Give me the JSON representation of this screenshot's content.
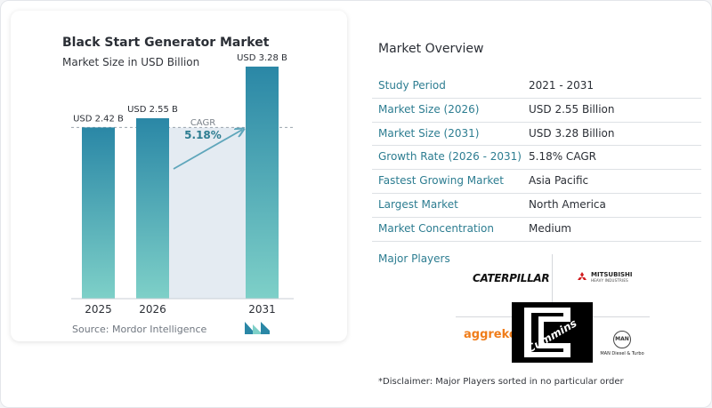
{
  "chart_data": {
    "type": "bar",
    "title": "Black Start Generator Market",
    "subtitle": "Market Size in USD Billion",
    "categories": [
      "2025",
      "2026",
      "2031"
    ],
    "values": [
      2.42,
      2.55,
      3.28
    ],
    "data_labels": [
      "USD 2.42 B",
      "USD 2.55 B",
      "USD 3.28 B"
    ],
    "xlabel": "",
    "ylabel": "",
    "cagr_label": "CAGR",
    "cagr_value": "5.18%",
    "grid": false,
    "colors": {
      "bar_top": "#2a87a6",
      "bar_bottom": "#7ed0c8",
      "shade": "#e4ebf2",
      "arrow": "#5fa6bb",
      "cagr": "#2d7d91"
    }
  },
  "source": "Source:  Mordor Intelligence",
  "overview": {
    "title": "Market Overview",
    "rows": [
      {
        "key": "Study Period",
        "value": "2021 - 2031"
      },
      {
        "key": "Market Size (2026)",
        "value": "USD 2.55 Billion"
      },
      {
        "key": "Market Size (2031)",
        "value": "USD 3.28 Billion"
      },
      {
        "key": "Growth Rate (2026 - 2031)",
        "value": "5.18% CAGR"
      },
      {
        "key": "Fastest Growing Market",
        "value": "Asia Pacific"
      },
      {
        "key": "Largest Market",
        "value": "North America"
      },
      {
        "key": "Market Concentration",
        "value": "Medium"
      }
    ]
  },
  "players": {
    "label": "Major Players",
    "caterpillar": "CATERPILLAR",
    "mitsubishi": "MITSUBISHI",
    "mitsubishi_sub": "HEAVY INDUSTRIES",
    "aggreko": "aggreko",
    "cummins": "Cummins",
    "man_badge": "MAN",
    "man": "MAN Diesel & Turbo"
  },
  "disclaimer": "*Disclaimer: Major Players sorted in no particular order"
}
